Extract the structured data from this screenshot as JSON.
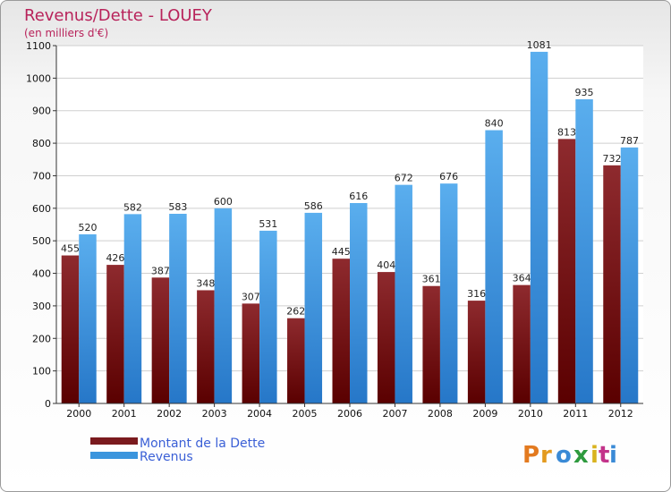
{
  "chart_data": {
    "type": "bar",
    "title": "Revenus/Dette - LOUEY",
    "subtitle": "(en milliers d'€)",
    "categories": [
      "2000",
      "2001",
      "2002",
      "2003",
      "2004",
      "2005",
      "2006",
      "2007",
      "2008",
      "2009",
      "2010",
      "2011",
      "2012"
    ],
    "series": [
      {
        "name": "Montant de la Dette",
        "color": "#7a1a1e",
        "values": [
          455,
          426,
          387,
          348,
          307,
          262,
          445,
          404,
          361,
          316,
          364,
          813,
          732
        ]
      },
      {
        "name": "Revenus",
        "color": "#3b95dd",
        "values": [
          520,
          582,
          583,
          600,
          531,
          586,
          616,
          672,
          676,
          840,
          1081,
          935,
          787
        ]
      }
    ],
    "ylim": [
      0,
      1100
    ],
    "yticks": [
      0,
      100,
      200,
      300,
      400,
      500,
      600,
      700,
      800,
      900,
      1000,
      1100
    ],
    "grid": true,
    "legend": "bottom-left"
  },
  "branding": {
    "logo_letters": [
      "P",
      "r",
      "o",
      "x",
      "i",
      "t",
      "i"
    ]
  }
}
